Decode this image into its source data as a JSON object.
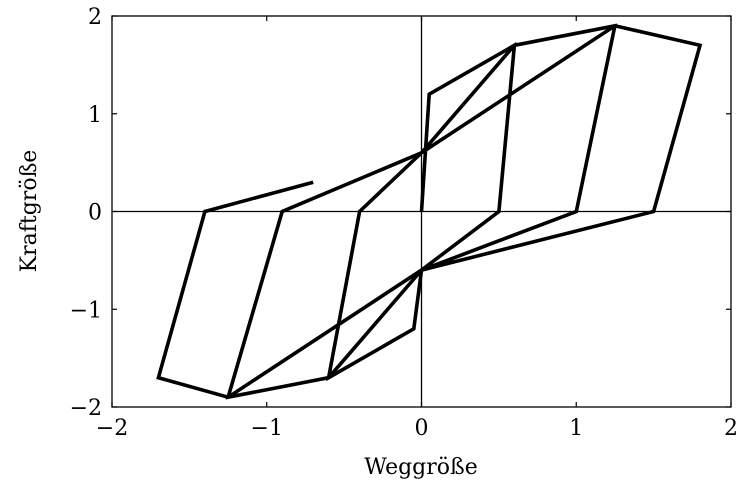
{
  "chart_data": {
    "type": "line",
    "xlabel": "Weggröße",
    "ylabel": "Kraftgröße",
    "xlim": [
      -2,
      2
    ],
    "ylim": [
      -2,
      2
    ],
    "xticks": [
      -2,
      -1,
      0,
      1,
      2
    ],
    "yticks": [
      -2,
      -1,
      0,
      1,
      2
    ],
    "xtick_labels": [
      "−2",
      "−1",
      "0",
      "1",
      "2"
    ],
    "ytick_labels": [
      "−2",
      "−1",
      "0",
      "1",
      "2"
    ],
    "grid": false,
    "zero_lines": true,
    "series": [
      {
        "points": [
          [
            0,
            0
          ],
          [
            0.05,
            1.2
          ],
          [
            0.6,
            1.7
          ],
          [
            0.5,
            0
          ],
          [
            0,
            -0.6
          ],
          [
            -0.05,
            -1.2
          ],
          [
            -0.6,
            -1.7
          ],
          [
            -0.4,
            0
          ],
          [
            0,
            0.6
          ],
          [
            0.6,
            1.7
          ],
          [
            1.25,
            1.9
          ],
          [
            1.0,
            0
          ],
          [
            0,
            -0.6
          ],
          [
            -0.6,
            -1.7
          ],
          [
            -1.25,
            -1.9
          ],
          [
            -0.9,
            0
          ],
          [
            0,
            0.6
          ],
          [
            1.25,
            1.9
          ],
          [
            1.8,
            1.7
          ],
          [
            1.5,
            0
          ],
          [
            0,
            -0.6
          ],
          [
            -1.25,
            -1.9
          ],
          [
            -1.7,
            -1.7
          ],
          [
            -1.4,
            0
          ],
          [
            -0.7,
            0.3
          ]
        ]
      }
    ]
  }
}
